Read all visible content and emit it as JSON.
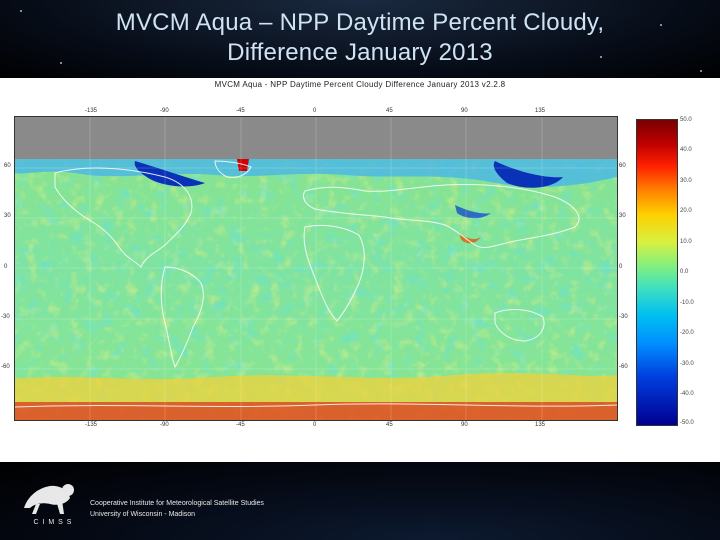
{
  "slide": {
    "title_line1": "MVCM Aqua – NPP Daytime Percent Cloudy,",
    "title_line2": "Difference January 2013"
  },
  "figure": {
    "subtitle": "MVCM Aqua - NPP Daytime Percent Cloudy Difference January 2013 v2.2.8",
    "top_ticks": [
      "-135",
      "-90",
      "-45",
      "0",
      "45",
      "90",
      "135"
    ],
    "bottom_ticks": [
      "-135",
      "-90",
      "-45",
      "0",
      "45",
      "90",
      "135"
    ],
    "left_ticks": [
      "60",
      "30",
      "0",
      "-30",
      "-60"
    ],
    "right_ticks": [
      "60",
      "30",
      "0",
      "-30",
      "-60"
    ],
    "colorbar_labels": [
      "50.0",
      "40.0",
      "30.0",
      "20.0",
      "10.0",
      "0.0",
      "-10.0",
      "-20.0",
      "-30.0",
      "-40.0",
      "-50.0"
    ],
    "colors": {
      "ocean_base": "#7fe3a0",
      "no_data": "#8a8a8a",
      "positive_high": "#d00000",
      "negative_low": "#0020b0"
    }
  },
  "footer": {
    "logo_text": "C I M S S",
    "institute_line1": "Cooperative Institute for Meteorological Satellite Studies",
    "institute_line2": "University of Wisconsin - Madison"
  }
}
